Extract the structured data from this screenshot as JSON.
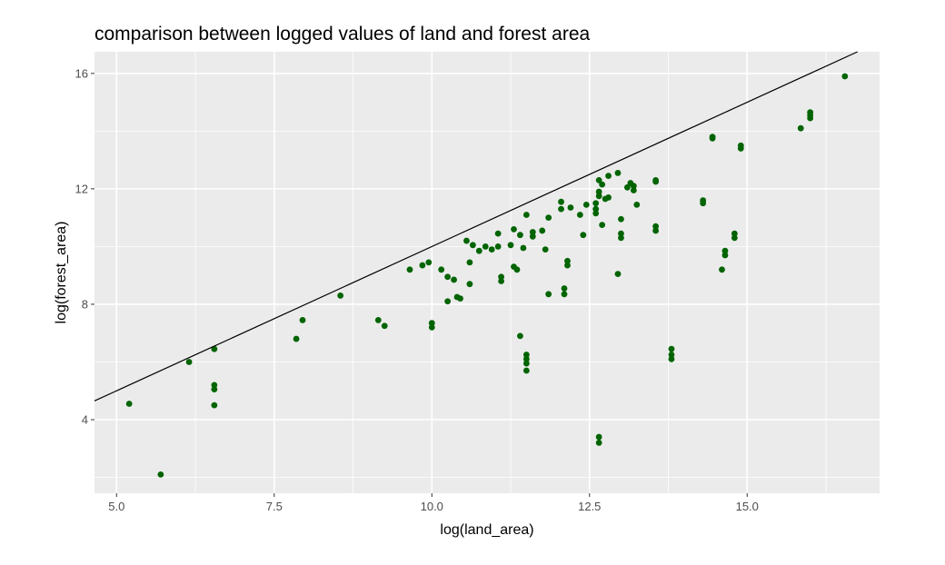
{
  "chart_data": {
    "type": "scatter",
    "title": "comparison between logged values of land and forest area",
    "xlabel": "log(land_area)",
    "ylabel": "log(forest_area)",
    "xlim": [
      4.65,
      17.1
    ],
    "ylim": [
      1.45,
      16.75
    ],
    "xticks": [
      5.0,
      7.5,
      10.0,
      12.5,
      15.0
    ],
    "xtick_labels": [
      "5.0",
      "7.5",
      "10.0",
      "12.5",
      "15.0"
    ],
    "yticks": [
      4,
      8,
      12,
      16
    ],
    "ytick_labels": [
      "4",
      "8",
      "12",
      "16"
    ],
    "grid": true,
    "panel_background": "#ebebeb",
    "grid_color": "#ffffff",
    "point_color": "#006400",
    "reference_line": {
      "slope": 1,
      "intercept": 0,
      "color": "#000000"
    },
    "points": [
      [
        5.2,
        4.55
      ],
      [
        5.7,
        2.1
      ],
      [
        6.15,
        6.0
      ],
      [
        6.55,
        6.45
      ],
      [
        6.55,
        5.2
      ],
      [
        6.55,
        5.05
      ],
      [
        6.55,
        4.5
      ],
      [
        7.85,
        6.8
      ],
      [
        7.95,
        7.45
      ],
      [
        8.55,
        8.3
      ],
      [
        9.15,
        7.45
      ],
      [
        9.25,
        7.25
      ],
      [
        9.65,
        9.2
      ],
      [
        9.85,
        9.35
      ],
      [
        9.95,
        9.45
      ],
      [
        10.0,
        7.35
      ],
      [
        10.0,
        7.2
      ],
      [
        10.15,
        9.2
      ],
      [
        10.25,
        8.95
      ],
      [
        10.25,
        8.1
      ],
      [
        10.35,
        8.85
      ],
      [
        10.4,
        8.25
      ],
      [
        10.45,
        8.2
      ],
      [
        10.55,
        10.2
      ],
      [
        10.6,
        9.45
      ],
      [
        10.6,
        8.7
      ],
      [
        10.65,
        10.05
      ],
      [
        10.75,
        9.85
      ],
      [
        10.85,
        10.0
      ],
      [
        10.95,
        9.9
      ],
      [
        11.05,
        10.45
      ],
      [
        11.05,
        10.0
      ],
      [
        11.1,
        8.95
      ],
      [
        11.1,
        8.8
      ],
      [
        11.25,
        10.05
      ],
      [
        11.3,
        10.6
      ],
      [
        11.3,
        9.3
      ],
      [
        11.35,
        9.2
      ],
      [
        11.4,
        6.9
      ],
      [
        11.4,
        10.4
      ],
      [
        11.45,
        9.95
      ],
      [
        11.5,
        11.1
      ],
      [
        11.5,
        6.25
      ],
      [
        11.5,
        6.1
      ],
      [
        11.5,
        5.95
      ],
      [
        11.5,
        5.7
      ],
      [
        11.6,
        10.5
      ],
      [
        11.6,
        10.35
      ],
      [
        11.75,
        10.55
      ],
      [
        11.8,
        9.9
      ],
      [
        11.85,
        8.35
      ],
      [
        11.85,
        11.0
      ],
      [
        12.05,
        11.55
      ],
      [
        12.05,
        11.3
      ],
      [
        12.1,
        8.55
      ],
      [
        12.1,
        8.35
      ],
      [
        12.15,
        9.5
      ],
      [
        12.15,
        9.35
      ],
      [
        12.2,
        11.35
      ],
      [
        12.35,
        11.1
      ],
      [
        12.4,
        10.4
      ],
      [
        12.45,
        11.45
      ],
      [
        12.6,
        11.3
      ],
      [
        12.6,
        11.15
      ],
      [
        12.6,
        11.5
      ],
      [
        12.65,
        11.75
      ],
      [
        12.65,
        11.9
      ],
      [
        12.65,
        12.3
      ],
      [
        12.65,
        3.4
      ],
      [
        12.65,
        3.2
      ],
      [
        12.7,
        12.15
      ],
      [
        12.7,
        10.75
      ],
      [
        12.75,
        11.65
      ],
      [
        12.8,
        12.45
      ],
      [
        12.8,
        11.7
      ],
      [
        12.95,
        12.55
      ],
      [
        12.95,
        9.05
      ],
      [
        13.0,
        10.45
      ],
      [
        13.0,
        10.3
      ],
      [
        13.0,
        10.95
      ],
      [
        13.1,
        12.05
      ],
      [
        13.15,
        12.2
      ],
      [
        13.2,
        12.1
      ],
      [
        13.2,
        11.95
      ],
      [
        13.25,
        11.45
      ],
      [
        13.55,
        12.25
      ],
      [
        13.55,
        12.3
      ],
      [
        13.55,
        10.55
      ],
      [
        13.55,
        10.7
      ],
      [
        13.8,
        6.45
      ],
      [
        13.8,
        6.25
      ],
      [
        13.8,
        6.1
      ],
      [
        14.3,
        11.5
      ],
      [
        14.3,
        11.6
      ],
      [
        14.45,
        13.8
      ],
      [
        14.45,
        13.75
      ],
      [
        14.6,
        9.2
      ],
      [
        14.65,
        9.85
      ],
      [
        14.65,
        9.7
      ],
      [
        14.8,
        10.45
      ],
      [
        14.8,
        10.3
      ],
      [
        14.9,
        13.5
      ],
      [
        14.9,
        13.4
      ],
      [
        15.85,
        14.1
      ],
      [
        16.0,
        14.45
      ],
      [
        16.0,
        14.55
      ],
      [
        16.0,
        14.65
      ],
      [
        16.55,
        15.9
      ]
    ]
  }
}
